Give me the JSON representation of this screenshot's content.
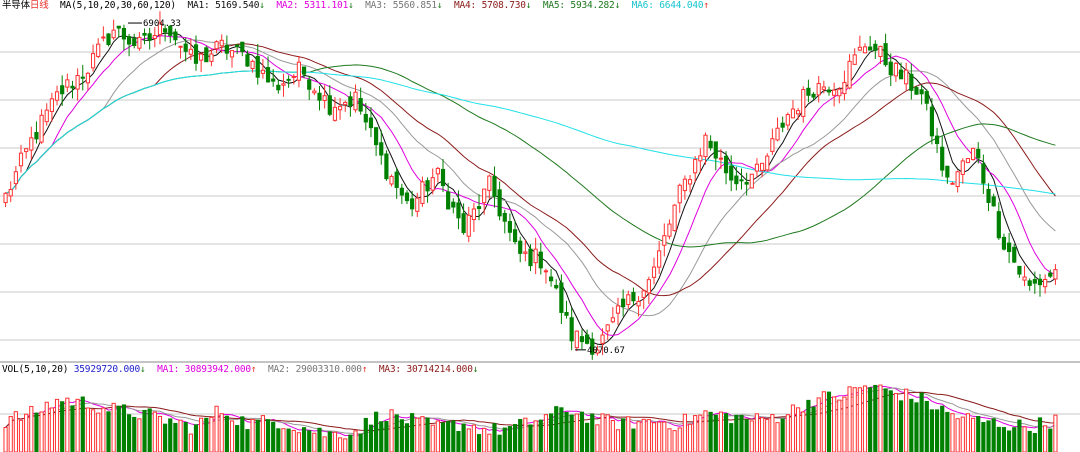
{
  "colors": {
    "up": "#ff3030",
    "down": "#008000",
    "grid": "#c8c8c8",
    "ma1": "#111111",
    "ma2": "#e000e0",
    "ma3": "#999999",
    "ma4": "#8b1a1a",
    "ma5": "#1f7a1f",
    "ma6": "#20e0e8"
  },
  "price_legend": {
    "symbol": "半导体",
    "period": "日线",
    "params": "MA(5,10,20,30,60,120)",
    "ma1": {
      "label": "MA1:",
      "value": "5169.540",
      "arrow": "↓"
    },
    "ma2": {
      "label": "MA2:",
      "value": "5311.101",
      "arrow": "↓"
    },
    "ma3": {
      "label": "MA3:",
      "value": "5560.851",
      "arrow": "↓"
    },
    "ma4": {
      "label": "MA4:",
      "value": "5708.730",
      "arrow": "↓"
    },
    "ma5": {
      "label": "MA5:",
      "value": "5934.282",
      "arrow": "↓"
    },
    "ma6": {
      "label": "MA6:",
      "value": "6644.040",
      "arrow": "↑"
    }
  },
  "vol_legend": {
    "params": "VOL(5,10,20)",
    "vol": {
      "value": "35929720.000",
      "arrow": "↓"
    },
    "ma1": {
      "label": "MA1:",
      "value": "30893942.000",
      "arrow": "↑"
    },
    "ma2": {
      "label": "MA2:",
      "value": "29003310.000",
      "arrow": "↑"
    },
    "ma3": {
      "label": "MA3:",
      "value": "30714214.000",
      "arrow": "↓"
    }
  },
  "chart_data": {
    "type": "candlestick",
    "annotations": [
      {
        "label": "6904.33",
        "value": 6904.33,
        "kind": "high"
      },
      {
        "label": "4070.67",
        "value": 4070.67,
        "kind": "low"
      }
    ],
    "ylim": [
      4000,
      7000
    ],
    "close_path": [
      5400,
      5900,
      6300,
      6500,
      6850,
      6700,
      6900,
      6550,
      6700,
      6600,
      6350,
      6500,
      6200,
      6250,
      5700,
      5300,
      5600,
      5100,
      5500,
      4900,
      4850,
      4200,
      4100,
      4450,
      4700,
      5400,
      5900,
      5550,
      5600,
      6100,
      6350,
      6400,
      6750,
      6500,
      6300,
      5500,
      5800,
      5050,
      4600,
      4750
    ],
    "volume_path": [
      0.45,
      0.55,
      0.75,
      0.7,
      0.6,
      0.55,
      0.45,
      0.35,
      0.6,
      0.4,
      0.45,
      0.35,
      0.25,
      0.3,
      0.55,
      0.45,
      0.35,
      0.4,
      0.3,
      0.35,
      0.5,
      0.6,
      0.45,
      0.4,
      0.45,
      0.4,
      0.55,
      0.5,
      0.45,
      0.55,
      0.75,
      0.8,
      0.95,
      0.85,
      0.75,
      0.55,
      0.45,
      0.4,
      0.35,
      0.45
    ]
  }
}
